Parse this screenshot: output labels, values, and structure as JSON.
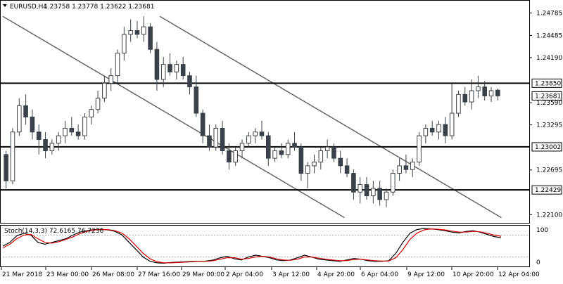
{
  "chart_data": {
    "type": "candlestick",
    "title": "EURUSD,H4",
    "ohlc_header": {
      "open": "1.23758",
      "high": "1.23778",
      "low": "1.23622",
      "close": "1.23681"
    },
    "y_ticks": [
      "1.24785",
      "1.24485",
      "1.24190",
      "1.23590",
      "1.23295",
      "1.22695",
      "1.22100"
    ],
    "ylim": [
      1.22,
      1.2492
    ],
    "x_ticks": [
      "21 Mar 2018",
      "23 Mar 00:00",
      "26 Mar 08:00",
      "27 Mar 16:00",
      "29 Mar 00:00",
      "2 Apr 04:00",
      "3 Apr 12:00",
      "4 Apr 20:00",
      "6 Apr 04:00",
      "9 Apr 12:00",
      "10 Apr 20:00",
      "12 Apr 04:00"
    ],
    "current_price": "1.23681",
    "horizontal_levels": [
      {
        "label": "1.23850",
        "value": 1.2385
      },
      {
        "label": "1.23002",
        "value": 1.23002
      },
      {
        "label": "1.22429",
        "value": 1.22429
      }
    ],
    "trend_lines": [
      {
        "from": {
          "bar": 0,
          "price": 1.2474
        },
        "to": {
          "bar": 74,
          "price": 1.2206
        }
      },
      {
        "from": {
          "bar": 34,
          "price": 1.2474
        },
        "to": {
          "bar": 108,
          "price": 1.2206
        }
      }
    ],
    "candles": [
      [
        1.229,
        1.2295,
        1.2245,
        1.2255
      ],
      [
        1.2255,
        1.2325,
        1.225,
        1.232
      ],
      [
        1.232,
        1.2365,
        1.2315,
        1.2355
      ],
      [
        1.2355,
        1.237,
        1.233,
        1.234
      ],
      [
        1.234,
        1.235,
        1.231,
        1.232
      ],
      [
        1.232,
        1.233,
        1.229,
        1.231
      ],
      [
        1.231,
        1.232,
        1.2285,
        1.2295
      ],
      [
        1.2295,
        1.231,
        1.229,
        1.2305
      ],
      [
        1.2305,
        1.232,
        1.2295,
        1.2315
      ],
      [
        1.2315,
        1.2335,
        1.2305,
        1.2325
      ],
      [
        1.2325,
        1.234,
        1.2315,
        1.232
      ],
      [
        1.232,
        1.233,
        1.231,
        1.2315
      ],
      [
        1.2315,
        1.2345,
        1.231,
        1.234
      ],
      [
        1.234,
        1.2355,
        1.233,
        1.235
      ],
      [
        1.235,
        1.2375,
        1.2345,
        1.2365
      ],
      [
        1.2365,
        1.2395,
        1.236,
        1.2385
      ],
      [
        1.2385,
        1.2405,
        1.2375,
        1.2395
      ],
      [
        1.2395,
        1.243,
        1.2385,
        1.2425
      ],
      [
        1.2425,
        1.246,
        1.2415,
        1.245
      ],
      [
        1.245,
        1.247,
        1.244,
        1.2455
      ],
      [
        1.2455,
        1.2468,
        1.2445,
        1.245
      ],
      [
        1.245,
        1.2474,
        1.244,
        1.246
      ],
      [
        1.246,
        1.2465,
        1.2425,
        1.243
      ],
      [
        1.243,
        1.244,
        1.2375,
        1.239
      ],
      [
        1.239,
        1.242,
        1.238,
        1.241
      ],
      [
        1.241,
        1.2425,
        1.2395,
        1.24
      ],
      [
        1.24,
        1.2415,
        1.239,
        1.241
      ],
      [
        1.241,
        1.242,
        1.239,
        1.2395
      ],
      [
        1.2395,
        1.24,
        1.237,
        1.238
      ],
      [
        1.238,
        1.2395,
        1.234,
        1.2345
      ],
      [
        1.2345,
        1.235,
        1.2305,
        1.2315
      ],
      [
        1.2315,
        1.233,
        1.2295,
        1.23
      ],
      [
        1.23,
        1.233,
        1.2295,
        1.2325
      ],
      [
        1.2325,
        1.2335,
        1.229,
        1.2295
      ],
      [
        1.2295,
        1.2305,
        1.227,
        1.228
      ],
      [
        1.228,
        1.23,
        1.2275,
        1.2295
      ],
      [
        1.2295,
        1.231,
        1.2285,
        1.2305
      ],
      [
        1.2305,
        1.232,
        1.23,
        1.2315
      ],
      [
        1.2315,
        1.2325,
        1.2305,
        1.232
      ],
      [
        1.232,
        1.2335,
        1.231,
        1.2315
      ],
      [
        1.2315,
        1.232,
        1.2275,
        1.2285
      ],
      [
        1.2285,
        1.23,
        1.228,
        1.2295
      ],
      [
        1.2295,
        1.2305,
        1.2285,
        1.229
      ],
      [
        1.229,
        1.231,
        1.2285,
        1.2305
      ],
      [
        1.2305,
        1.232,
        1.2295,
        1.23
      ],
      [
        1.23,
        1.2305,
        1.2255,
        1.2265
      ],
      [
        1.2265,
        1.228,
        1.2245,
        1.2275
      ],
      [
        1.2275,
        1.229,
        1.2265,
        1.228
      ],
      [
        1.228,
        1.23,
        1.227,
        1.2295
      ],
      [
        1.2295,
        1.231,
        1.2285,
        1.23
      ],
      [
        1.23,
        1.2305,
        1.228,
        1.2285
      ],
      [
        1.2285,
        1.2295,
        1.2265,
        1.2275
      ],
      [
        1.2275,
        1.2285,
        1.226,
        1.2265
      ],
      [
        1.2265,
        1.227,
        1.223,
        1.224
      ],
      [
        1.224,
        1.226,
        1.2225,
        1.225
      ],
      [
        1.225,
        1.226,
        1.223,
        1.2235
      ],
      [
        1.2235,
        1.2255,
        1.2225,
        1.2245
      ],
      [
        1.2245,
        1.2255,
        1.2222,
        1.223
      ],
      [
        1.223,
        1.2245,
        1.222,
        1.224
      ],
      [
        1.224,
        1.227,
        1.2235,
        1.2265
      ],
      [
        1.2265,
        1.2285,
        1.2255,
        1.2275
      ],
      [
        1.2275,
        1.229,
        1.2265,
        1.227
      ],
      [
        1.227,
        1.2285,
        1.226,
        1.228
      ],
      [
        1.228,
        1.232,
        1.2275,
        1.2315
      ],
      [
        1.2315,
        1.233,
        1.2305,
        1.2325
      ],
      [
        1.2325,
        1.2335,
        1.2315,
        1.232
      ],
      [
        1.232,
        1.2335,
        1.231,
        1.233
      ],
      [
        1.233,
        1.234,
        1.2305,
        1.2315
      ],
      [
        1.2315,
        1.2385,
        1.231,
        1.2345
      ],
      [
        1.2345,
        1.2375,
        1.234,
        1.237
      ],
      [
        1.237,
        1.238,
        1.2355,
        1.236
      ],
      [
        1.236,
        1.239,
        1.235,
        1.2375
      ],
      [
        1.2375,
        1.2395,
        1.2365,
        1.238
      ],
      [
        1.238,
        1.2388,
        1.2362,
        1.2368
      ],
      [
        1.2368,
        1.238,
        1.236,
        1.2375
      ],
      [
        1.23758,
        1.23778,
        1.23622,
        1.23681
      ]
    ],
    "stochastic": {
      "label": "Stoch(14,3,3) 72.6165 76.7236",
      "levels": [
        "100",
        "0"
      ],
      "ylim": [
        0,
        100
      ],
      "k_line": [
        50,
        60,
        78,
        85,
        80,
        60,
        55,
        60,
        65,
        70,
        80,
        88,
        92,
        95,
        96,
        94,
        90,
        80,
        60,
        40,
        20,
        8,
        4,
        3,
        5,
        6,
        7,
        8,
        8,
        9,
        12,
        18,
        22,
        15,
        12,
        20,
        25,
        22,
        18,
        12,
        10,
        12,
        18,
        25,
        20,
        14,
        12,
        10,
        8,
        12,
        16,
        14,
        10,
        8,
        8,
        10,
        30,
        60,
        85,
        95,
        98,
        97,
        95,
        92,
        88,
        86,
        90,
        92,
        88,
        82,
        76,
        72.6
      ],
      "d_line": [
        45,
        55,
        70,
        80,
        82,
        70,
        60,
        58,
        62,
        68,
        75,
        84,
        90,
        94,
        95,
        95,
        92,
        85,
        70,
        50,
        30,
        15,
        7,
        4,
        4,
        5,
        6,
        7,
        8,
        8,
        10,
        14,
        18,
        18,
        14,
        16,
        20,
        22,
        20,
        15,
        12,
        11,
        14,
        20,
        20,
        17,
        14,
        12,
        10,
        10,
        13,
        14,
        12,
        10,
        9,
        9,
        18,
        40,
        68,
        85,
        94,
        97,
        96,
        94,
        91,
        88,
        88,
        90,
        89,
        85,
        80,
        76.7
      ]
    }
  }
}
